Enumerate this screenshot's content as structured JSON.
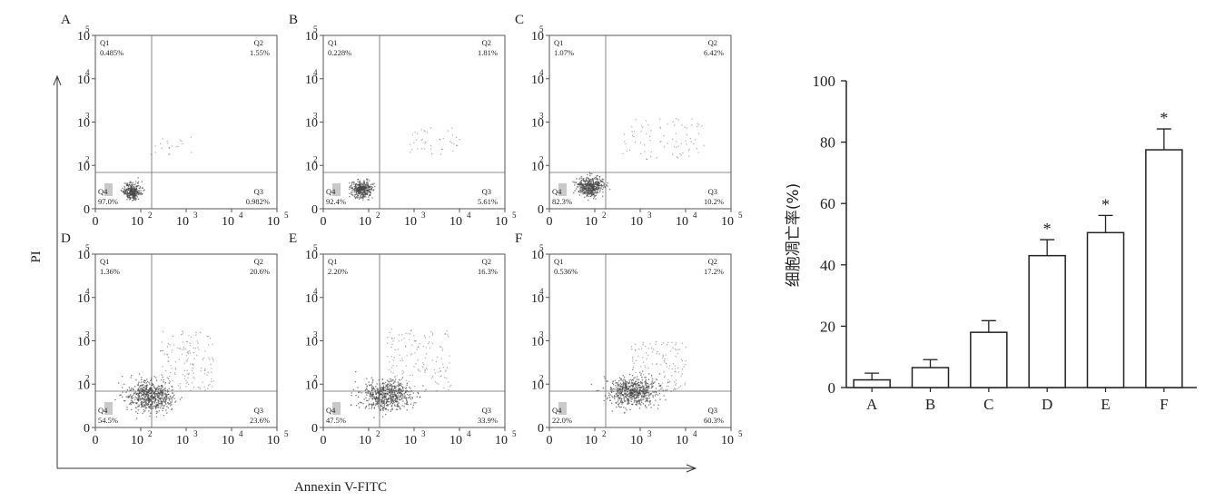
{
  "flow": {
    "y_label": "PI",
    "x_label": "Annexin V-FITC",
    "tick_labels": [
      "0",
      "10",
      "10",
      "10",
      "10"
    ],
    "tick_exponents": [
      "",
      "2",
      "3",
      "4",
      "5"
    ],
    "panels": [
      {
        "label": "A",
        "q1": "0.485%",
        "q2": "1.55%",
        "q3": "0.982%",
        "q4": "97.0%"
      },
      {
        "label": "B",
        "q1": "0.228%",
        "q2": "1.81%",
        "q3": "5.61%",
        "q4": "92.4%"
      },
      {
        "label": "C",
        "q1": "1.07%",
        "q2": "6.42%",
        "q3": "10.2%",
        "q4": "82.3%"
      },
      {
        "label": "D",
        "q1": "1.36%",
        "q2": "20.6%",
        "q3": "23.6%",
        "q4": "54.5%"
      },
      {
        "label": "E",
        "q1": "2.20%",
        "q2": "16.3%",
        "q3": "33.9%",
        "q4": "47.5%"
      },
      {
        "label": "F",
        "q1": "0.536%",
        "q2": "17.2%",
        "q3": "60.3%",
        "q4": "22.0%"
      }
    ],
    "quadrant_names": [
      "Q1",
      "Q2",
      "Q3",
      "Q4"
    ]
  },
  "chart_data": {
    "type": "bar",
    "categories": [
      "A",
      "B",
      "C",
      "D",
      "E",
      "F"
    ],
    "values": [
      2.5,
      6.5,
      18,
      43,
      50.5,
      77.5
    ],
    "errors": [
      2.2,
      2.6,
      3.8,
      5.2,
      5.6,
      6.8
    ],
    "significance": [
      "",
      "",
      "",
      "*",
      "*",
      "*"
    ],
    "ylabel": "细胞凋亡率(%)",
    "ylim": [
      0,
      100
    ],
    "yticks": [
      0,
      20,
      40,
      60,
      80,
      100
    ],
    "grid": false
  }
}
